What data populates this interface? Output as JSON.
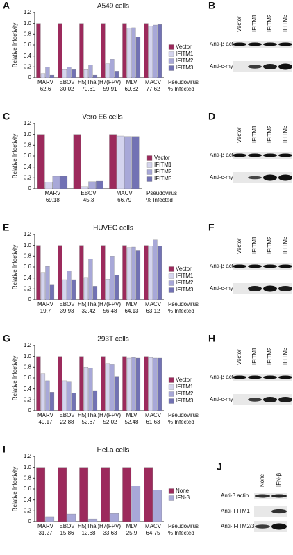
{
  "chart_data": [
    {
      "type": "bar",
      "panel": "A",
      "title": "A549 cells",
      "y_label": "Relative Infectivity",
      "categories": [
        "MARV",
        "EBOV",
        "H5(Thai)",
        "H7(FPV)",
        "MLV",
        "MACV"
      ],
      "infected": [
        62.6,
        30.02,
        70.61,
        59.91,
        69.82,
        77.62
      ],
      "footer": [
        "Pseudovirus",
        "% Infected"
      ],
      "series": [
        {
          "name": "Vector",
          "color": "#9c2a5c",
          "values": [
            1,
            1,
            1,
            1,
            1,
            1
          ]
        },
        {
          "name": "IFITM1",
          "color": "#d4d4ee",
          "values": [
            0.08,
            0.15,
            0.15,
            0.26,
            0.91,
            0.95
          ]
        },
        {
          "name": "IFITM2",
          "color": "#a8a8d8",
          "values": [
            0.2,
            0.2,
            0.24,
            0.34,
            0.92,
            0.97
          ]
        },
        {
          "name": "IFITM3",
          "color": "#7272b4",
          "values": [
            0.05,
            0.15,
            0.05,
            0.11,
            0.75,
            0.98
          ]
        }
      ],
      "ylim": [
        0,
        1.2
      ],
      "yticks": [
        0,
        0.2,
        0.4,
        0.6,
        0.8,
        {
          "value": 1,
          "label": "1.0"
        },
        1.2
      ]
    },
    {
      "type": "bar",
      "panel": "C",
      "title": "Vero E6 cells",
      "y_label": "Relative Infectivity",
      "categories": [
        "MARV",
        "EBOV",
        "MACV"
      ],
      "infected": [
        69.18,
        45.3,
        66.79
      ],
      "footer": [
        "Pseudovirus",
        "% Infected"
      ],
      "series": [
        {
          "name": "Vector",
          "color": "#9c2a5c",
          "values": [
            1,
            1,
            1
          ]
        },
        {
          "name": "IFITM1",
          "color": "#d4d4ee",
          "values": [
            0.12,
            0.04,
            0.97
          ]
        },
        {
          "name": "IFITM2",
          "color": "#a8a8d8",
          "values": [
            0.23,
            0.13,
            0.96
          ]
        },
        {
          "name": "IFITM3",
          "color": "#7272b4",
          "values": [
            0.23,
            0.14,
            0.96
          ]
        }
      ],
      "ylim": [
        0,
        1.2
      ],
      "yticks": [
        0,
        0.2,
        0.4,
        0.6,
        0.8,
        {
          "value": 1,
          "label": "1.0"
        },
        1.2
      ]
    },
    {
      "type": "bar",
      "panel": "E",
      "title": "HUVEC cells",
      "y_label": "Relative Infectivity",
      "categories": [
        "MARV",
        "EBOV",
        "H5(Thai)",
        "H7(FPV)",
        "MLV",
        "MACV"
      ],
      "infected": [
        19.7,
        39.93,
        32.42,
        56.48,
        64.13,
        63.12
      ],
      "footer": [
        "Pseudovirus",
        "% Infected"
      ],
      "series": [
        {
          "name": "Vector",
          "color": "#9c2a5c",
          "values": [
            1,
            1,
            1,
            1,
            1,
            1
          ]
        },
        {
          "name": "IFITM1",
          "color": "#d4d4ee",
          "values": [
            0.5,
            0.37,
            0.41,
            0.38,
            0.96,
            0.99
          ]
        },
        {
          "name": "IFITM2",
          "color": "#a8a8d8",
          "values": [
            0.61,
            0.53,
            0.75,
            0.8,
            0.97,
            1.1
          ]
        },
        {
          "name": "IFITM3",
          "color": "#7272b4",
          "values": [
            0.27,
            0.37,
            0.25,
            0.45,
            0.9,
            0.99
          ]
        }
      ],
      "ylim": [
        0,
        1.2
      ],
      "yticks": [
        0,
        0.2,
        0.4,
        0.6,
        0.8,
        {
          "value": 1,
          "label": "1.0"
        },
        1.2
      ]
    },
    {
      "type": "bar",
      "panel": "G",
      "title": "293T cells",
      "y_label": "Relative Infectivity",
      "categories": [
        "MARV",
        "EBOV",
        "H5(Thai)",
        "H7(FPV)",
        "MLV",
        "MACV"
      ],
      "infected": [
        49.17,
        22.88,
        52.67,
        52.02,
        52.48,
        61.63
      ],
      "footer": [
        "Pseudovirus",
        "% Infected"
      ],
      "series": [
        {
          "name": "Vector",
          "color": "#9c2a5c",
          "values": [
            1,
            1,
            1,
            1,
            1,
            1
          ]
        },
        {
          "name": "IFITM1",
          "color": "#d4d4ee",
          "values": [
            0.68,
            0.55,
            0.8,
            0.87,
            0.97,
            0.98
          ]
        },
        {
          "name": "IFITM2",
          "color": "#a8a8d8",
          "values": [
            0.55,
            0.54,
            0.78,
            0.85,
            0.98,
            0.97
          ]
        },
        {
          "name": "IFITM3",
          "color": "#7272b4",
          "values": [
            0.34,
            0.33,
            0.37,
            0.63,
            0.97,
            0.97
          ]
        }
      ],
      "ylim": [
        0,
        1.2
      ],
      "yticks": [
        0,
        0.2,
        0.4,
        0.6,
        0.8,
        {
          "value": 1,
          "label": "1.0"
        },
        1.2
      ]
    },
    {
      "type": "bar",
      "panel": "I",
      "title": "HeLa cells",
      "y_label": "Relative Infectivity",
      "categories": [
        "MARV",
        "EBOV",
        "H5(Thai)",
        "H7(FPV)",
        "MLV",
        "MACV"
      ],
      "infected": [
        31.27,
        15.86,
        12.68,
        33.63,
        25.9,
        64.75
      ],
      "footer": [
        "Pseudovirus",
        "% Infected"
      ],
      "series": [
        {
          "name": "None",
          "color": "#9c2a5c",
          "values": [
            1,
            1,
            1,
            1,
            1,
            1
          ]
        },
        {
          "name": "IFN-β",
          "color": "#a8a8d8",
          "values": [
            0.09,
            0.14,
            0.05,
            0.15,
            0.66,
            0.58
          ]
        }
      ],
      "ylim": [
        0,
        1.2
      ],
      "yticks": [
        0,
        0.2,
        0.4,
        0.6,
        0.8,
        {
          "value": 1,
          "label": "1.0"
        },
        1.2
      ]
    }
  ],
  "blots": [
    {
      "panel": "B",
      "lanes": [
        "Vector",
        "IFITM1",
        "IFITM2",
        "IFITM3"
      ],
      "rows": [
        "Anti-β actin",
        "Anti-c-myc"
      ]
    },
    {
      "panel": "D",
      "lanes": [
        "Vector",
        "IFITM1",
        "IFITM2",
        "IFITM3"
      ],
      "rows": [
        "Anti-β actin",
        "Anti-c-myc"
      ]
    },
    {
      "panel": "F",
      "lanes": [
        "Vector",
        "IFITM1",
        "IFITM2",
        "IFITM3"
      ],
      "rows": [
        "Anti-β actin",
        "Anti-c-myc"
      ]
    },
    {
      "panel": "H",
      "lanes": [
        "Vector",
        "IFITM1",
        "IFITM2",
        "IFITM3"
      ],
      "rows": [
        "Anti-β actin",
        "Anti-c-myc"
      ]
    },
    {
      "panel": "J",
      "lanes": [
        "None",
        "IFN-β"
      ],
      "rows": [
        "Anti-β actin",
        "Anti-IFITM1",
        "Anti-IFITM2/3"
      ]
    }
  ]
}
